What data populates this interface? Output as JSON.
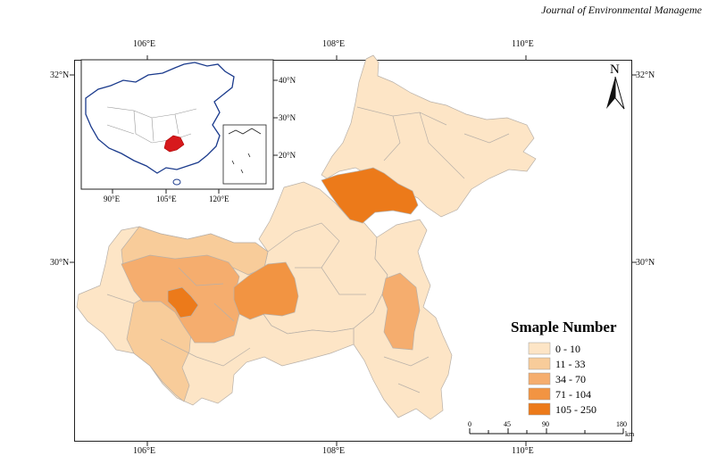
{
  "header": {
    "journal": "Journal of Environmental Manageme"
  },
  "axes": {
    "top": [
      "106°E",
      "108°E",
      "110°E"
    ],
    "bottom": [
      "106°E",
      "108°E",
      "110°E"
    ],
    "left": [
      "32°N",
      "30°N"
    ],
    "right": [
      "32°N",
      "30°N"
    ]
  },
  "inset": {
    "lon_labels": [
      "90°E",
      "105°E",
      "120°E"
    ],
    "lat_labels": [
      "40°N",
      "30°N",
      "20°N"
    ]
  },
  "north_arrow": {
    "label": "N"
  },
  "legend": {
    "title": "Smaple Number",
    "classes": [
      {
        "label": "0 - 10",
        "color": "#fde5c6"
      },
      {
        "label": "11 - 33",
        "color": "#f8cc9a"
      },
      {
        "label": "34 - 70",
        "color": "#f5ad6e"
      },
      {
        "label": "71 - 104",
        "color": "#f29442"
      },
      {
        "label": "105 - 250",
        "color": "#ec7a1a"
      }
    ]
  },
  "scalebar": {
    "ticks": [
      "0",
      "45",
      "90",
      "180"
    ],
    "unit": "km"
  },
  "highlight_color": "#d7191c"
}
